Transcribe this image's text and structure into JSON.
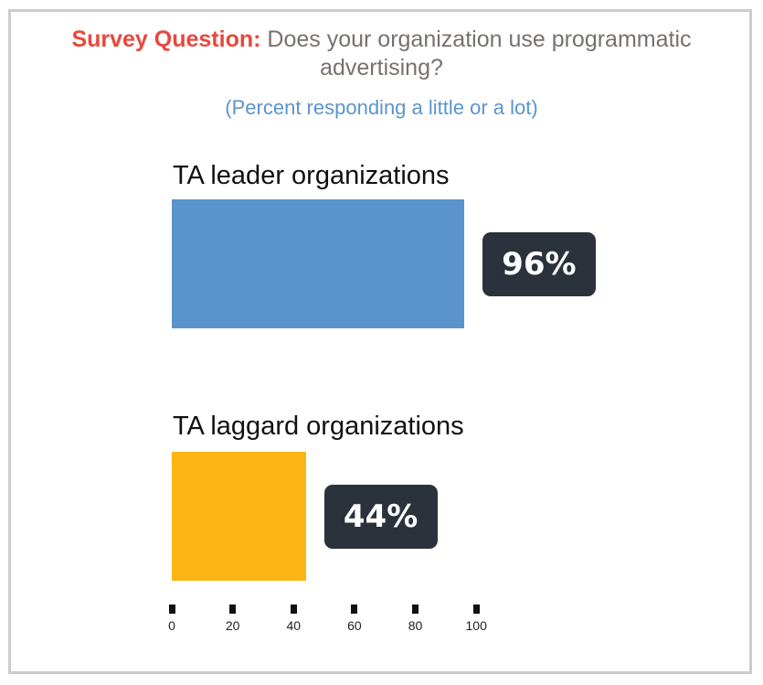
{
  "header": {
    "question_label": "Survey Question:",
    "question_text": "Does your organization use programmatic advertising?",
    "subtitle": "(Percent responding a little or a lot)"
  },
  "chart_data": {
    "type": "bar",
    "orientation": "horizontal",
    "title": "Survey Question: Does your organization use programmatic advertising?",
    "subtitle": "(Percent responding a little or a lot)",
    "categories": [
      "TA leader organizations",
      "TA laggard organizations"
    ],
    "values": [
      96,
      44
    ],
    "value_labels": [
      "96%",
      "44%"
    ],
    "colors": [
      "#5b94cc",
      "#fdb515"
    ],
    "xlim": [
      0,
      100
    ],
    "ticks": [
      0,
      20,
      40,
      60,
      80,
      100
    ],
    "grid": false
  },
  "colors": {
    "question_label": "#e8473d",
    "question_text": "#7a6f6f",
    "subtitle": "#5b94cc",
    "badge_bg": "#2b323c"
  }
}
